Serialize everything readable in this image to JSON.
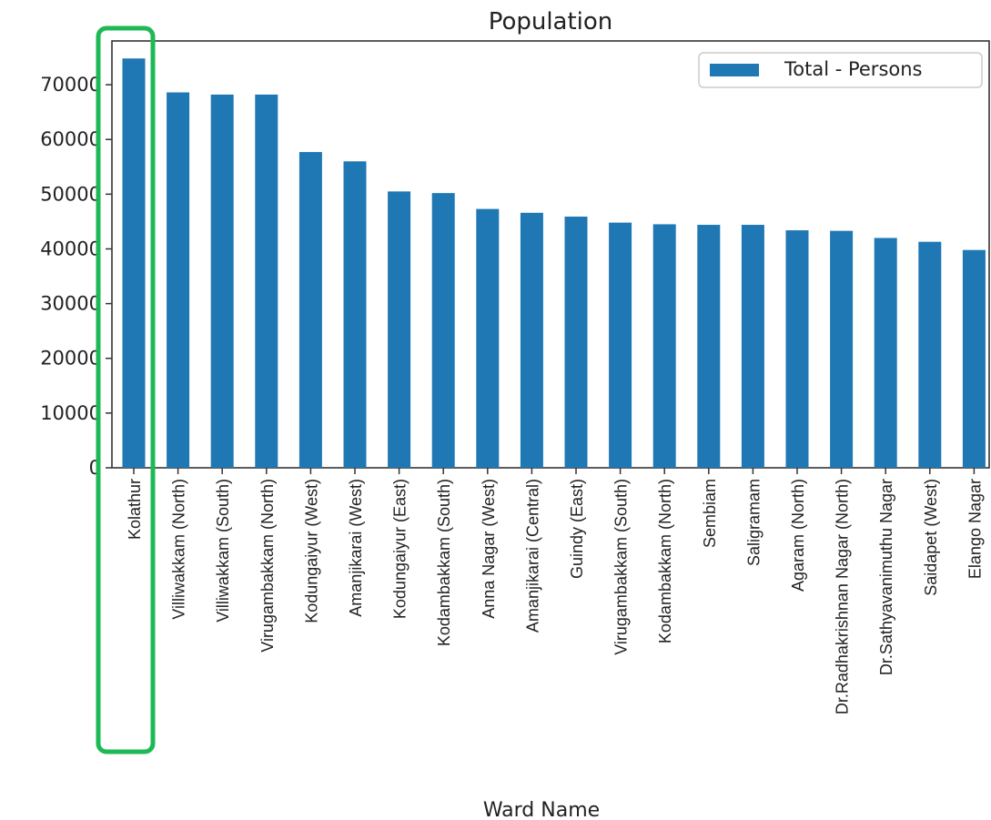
{
  "chart_data": {
    "type": "bar",
    "title": "Population",
    "xlabel": "Ward Name",
    "ylabel": "",
    "ylim": [
      0,
      78000
    ],
    "yticks": [
      0,
      10000,
      20000,
      30000,
      40000,
      50000,
      60000,
      70000
    ],
    "grid": false,
    "legend_position": "top-right",
    "categories": [
      "Kolathur",
      "Villiwakkam (North)",
      "Villiwakkam (South)",
      "Virugambakkam (North)",
      "Kodungaiyur (West)",
      "Amanjikarai (West)",
      "Kodungaiyur (East)",
      "Kodambakkam (South)",
      "Anna Nagar (West)",
      "Amanjikarai (Central)",
      "Guindy (East)",
      "Virugambakkam (South)",
      "Kodambakkam (North)",
      "Sembiam",
      "Saligramam",
      "Agaram (North)",
      "Dr.Radhakrishnan Nagar (North)",
      "Dr.Sathyavanimuthu Nagar",
      "Saidapet (West)",
      "Elango Nagar"
    ],
    "series": [
      {
        "name": "Total - Persons",
        "color": "#1f77b4",
        "values": [
          74800,
          68600,
          68200,
          68200,
          57700,
          56000,
          50500,
          50200,
          47300,
          46600,
          45900,
          44800,
          44500,
          44400,
          44400,
          43400,
          43300,
          42000,
          41300,
          39800
        ]
      }
    ],
    "highlight": {
      "category": "Kolathur",
      "color": "#1db954"
    }
  }
}
